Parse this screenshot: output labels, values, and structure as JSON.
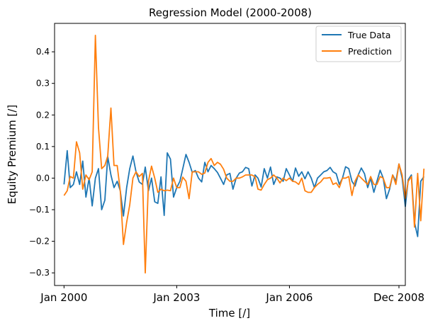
{
  "chart_data": {
    "type": "line",
    "title": "Regression Model (2000-2008)",
    "xlabel": "Time [/]",
    "ylabel": "Equity Premium [/]",
    "xlim": [
      "1999-10-01",
      "2009-02-01"
    ],
    "ylim": [
      -0.34,
      0.49
    ],
    "x_ticks": [
      {
        "date": "2000-01-01",
        "label": "Jan 2000"
      },
      {
        "date": "2003-01-01",
        "label": "Jan 2003"
      },
      {
        "date": "2006-01-01",
        "label": "Jan 2006"
      },
      {
        "date": "2008-12-01",
        "label": "Dec 2008"
      }
    ],
    "y_ticks": [
      {
        "value": 0.4,
        "label": "0.4"
      },
      {
        "value": 0.3,
        "label": "0.3"
      },
      {
        "value": 0.2,
        "label": "0.2"
      },
      {
        "value": 0.1,
        "label": "0.1"
      },
      {
        "value": 0.0,
        "label": "0.0"
      },
      {
        "value": -0.1,
        "label": "−0.1"
      },
      {
        "value": -0.2,
        "label": "−0.2"
      },
      {
        "value": -0.3,
        "label": "−0.3"
      }
    ],
    "grid": false,
    "legend_position": "top-right",
    "start": "2000-01",
    "frequency": "monthly",
    "series": [
      {
        "name": "True Data",
        "color": "#1f77b4",
        "values": [
          -0.02,
          0.087,
          -0.03,
          -0.02,
          0.02,
          -0.02,
          0.054,
          -0.06,
          0.0,
          -0.088,
          0.0,
          0.03,
          -0.1,
          -0.07,
          0.068,
          0.01,
          -0.03,
          -0.01,
          -0.04,
          -0.12,
          -0.03,
          0.03,
          0.07,
          0.02,
          -0.012,
          -0.02,
          0.035,
          -0.04,
          0.0,
          -0.075,
          -0.08,
          0.004,
          -0.118,
          0.08,
          0.06,
          -0.06,
          -0.03,
          -0.01,
          0.03,
          0.075,
          0.05,
          0.018,
          0.024,
          0.0,
          -0.012,
          0.05,
          0.02,
          0.04,
          0.03,
          0.018,
          0.0,
          -0.02,
          0.01,
          0.015,
          -0.035,
          0.0,
          0.016,
          0.02,
          0.034,
          0.03,
          -0.025,
          0.01,
          0.0,
          -0.028,
          0.03,
          0.0,
          0.035,
          -0.02,
          0.004,
          0.0,
          -0.01,
          0.03,
          0.01,
          -0.01,
          0.032,
          0.006,
          0.02,
          -0.002,
          0.02,
          0.0,
          -0.03,
          0.0,
          0.01,
          0.02,
          0.024,
          0.034,
          0.02,
          0.014,
          -0.02,
          0.0,
          0.036,
          0.03,
          -0.01,
          -0.025,
          0.01,
          0.032,
          0.014,
          -0.03,
          0.0,
          -0.045,
          -0.01,
          0.025,
          0.0,
          -0.065,
          -0.035,
          0.01,
          -0.01,
          0.045,
          0.0,
          -0.09,
          -0.005,
          0.01,
          -0.14,
          -0.185,
          -0.01,
          0.005
        ]
      },
      {
        "name": "Prediction",
        "color": "#ff7f0e",
        "values": [
          -0.055,
          -0.04,
          0.005,
          0.0,
          0.115,
          0.08,
          -0.035,
          0.01,
          -0.005,
          0.02,
          0.452,
          0.16,
          0.03,
          0.04,
          0.07,
          0.222,
          0.04,
          0.04,
          -0.04,
          -0.21,
          -0.14,
          -0.085,
          0.0,
          0.02,
          0.005,
          0.015,
          -0.3,
          -0.01,
          0.038,
          0.0,
          -0.045,
          -0.035,
          -0.04,
          -0.038,
          -0.04,
          0.0,
          -0.03,
          -0.03,
          0.003,
          -0.01,
          -0.065,
          0.02,
          0.02,
          0.02,
          0.012,
          0.016,
          0.05,
          0.062,
          0.04,
          0.05,
          0.044,
          0.028,
          0.0,
          -0.01,
          -0.01,
          0.0,
          0.0,
          0.004,
          0.01,
          0.01,
          0.01,
          0.004,
          -0.035,
          -0.038,
          -0.02,
          -0.005,
          0.0,
          0.01,
          0.0,
          -0.015,
          0.0,
          -0.008,
          0.0,
          -0.01,
          -0.012,
          -0.02,
          0.0,
          -0.04,
          -0.045,
          -0.045,
          -0.03,
          -0.02,
          -0.012,
          0.0,
          0.0,
          0.002,
          -0.02,
          -0.015,
          -0.03,
          0.0,
          0.0,
          0.005,
          -0.055,
          -0.01,
          0.01,
          0.0,
          -0.01,
          -0.02,
          0.005,
          -0.02,
          -0.02,
          0.005,
          0.0,
          -0.03,
          -0.03,
          0.01,
          -0.02,
          0.045,
          0.01,
          -0.065,
          -0.01,
          0.005,
          -0.155,
          0.015,
          -0.135,
          0.03
        ]
      }
    ]
  }
}
